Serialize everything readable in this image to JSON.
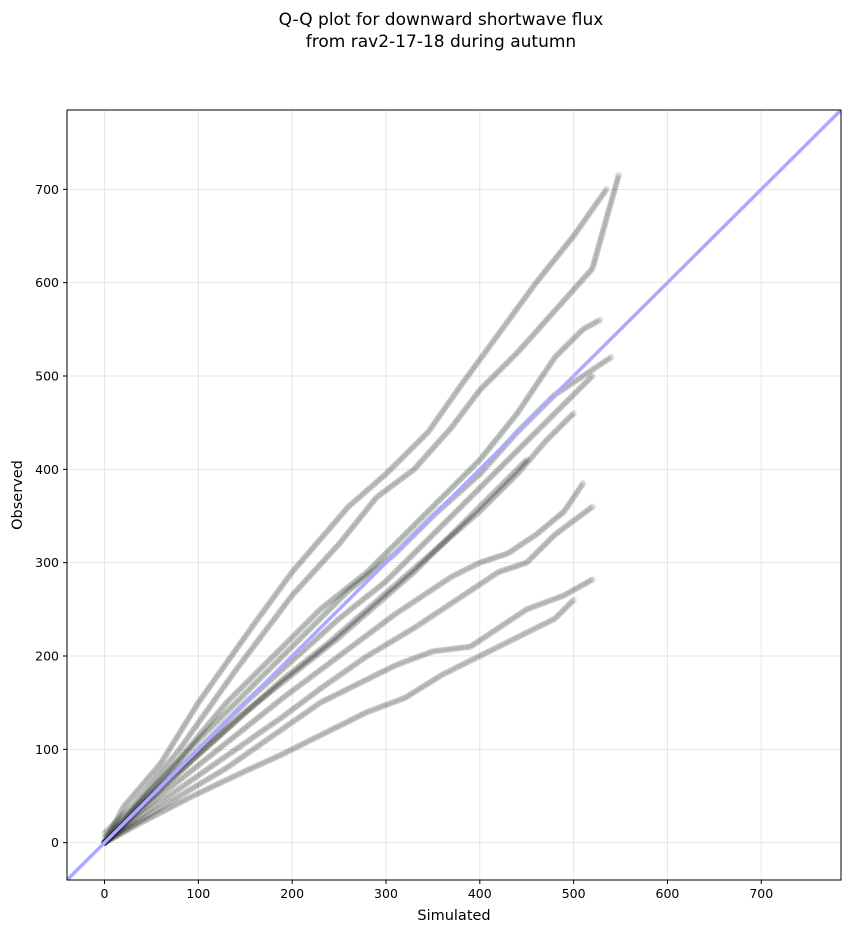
{
  "chart_data": {
    "type": "scatter",
    "title": [
      "Q-Q plot for downward shortwave flux",
      "from rav2-17-18 during autumn"
    ],
    "xlabel": "Simulated",
    "ylabel": "Observed",
    "xlim": [
      -40,
      785
    ],
    "ylim": [
      -40,
      785
    ],
    "xticks": [
      0,
      100,
      200,
      300,
      400,
      500,
      600,
      700
    ],
    "yticks": [
      0,
      100,
      200,
      300,
      400,
      500,
      600,
      700
    ],
    "grid": true,
    "reference_line": {
      "slope": 1,
      "intercept": 0,
      "color": "#aaaaff"
    },
    "point_color": "#000000",
    "point_alpha": 0.12,
    "series": [
      {
        "points": [
          [
            0,
            0
          ],
          [
            20,
            38
          ],
          [
            60,
            85
          ],
          [
            100,
            150
          ],
          [
            160,
            235
          ],
          [
            200,
            290
          ],
          [
            260,
            360
          ],
          [
            300,
            395
          ],
          [
            345,
            440
          ],
          [
            380,
            490
          ],
          [
            420,
            545
          ],
          [
            460,
            600
          ],
          [
            500,
            650
          ],
          [
            535,
            700
          ]
        ]
      },
      {
        "points": [
          [
            0,
            10
          ],
          [
            30,
            40
          ],
          [
            80,
            100
          ],
          [
            140,
            185
          ],
          [
            200,
            265
          ],
          [
            250,
            320
          ],
          [
            290,
            370
          ],
          [
            330,
            400
          ],
          [
            370,
            445
          ],
          [
            400,
            485
          ],
          [
            440,
            525
          ],
          [
            480,
            570
          ],
          [
            520,
            615
          ],
          [
            548,
            715
          ]
        ]
      },
      {
        "points": [
          [
            0,
            5
          ],
          [
            30,
            35
          ],
          [
            80,
            90
          ],
          [
            130,
            150
          ],
          [
            180,
            200
          ],
          [
            230,
            250
          ],
          [
            280,
            290
          ],
          [
            320,
            330
          ],
          [
            360,
            370
          ],
          [
            400,
            410
          ],
          [
            440,
            460
          ],
          [
            480,
            520
          ],
          [
            510,
            550
          ],
          [
            528,
            560
          ]
        ]
      },
      {
        "points": [
          [
            0,
            0
          ],
          [
            40,
            45
          ],
          [
            100,
            110
          ],
          [
            160,
            170
          ],
          [
            210,
            220
          ],
          [
            260,
            270
          ],
          [
            310,
            310
          ],
          [
            350,
            350
          ],
          [
            400,
            395
          ],
          [
            440,
            440
          ],
          [
            480,
            480
          ],
          [
            510,
            500
          ],
          [
            540,
            520
          ]
        ]
      },
      {
        "points": [
          [
            0,
            0
          ],
          [
            40,
            42
          ],
          [
            90,
            90
          ],
          [
            150,
            150
          ],
          [
            200,
            195
          ],
          [
            250,
            240
          ],
          [
            300,
            280
          ],
          [
            340,
            320
          ],
          [
            380,
            360
          ],
          [
            420,
            400
          ],
          [
            460,
            440
          ],
          [
            490,
            470
          ],
          [
            520,
            500
          ]
        ]
      },
      {
        "points": [
          [
            0,
            0
          ],
          [
            40,
            40
          ],
          [
            90,
            85
          ],
          [
            140,
            130
          ],
          [
            190,
            175
          ],
          [
            240,
            215
          ],
          [
            280,
            250
          ],
          [
            320,
            285
          ],
          [
            360,
            320
          ],
          [
            400,
            355
          ],
          [
            440,
            395
          ],
          [
            470,
            430
          ],
          [
            500,
            460
          ]
        ]
      },
      {
        "points": [
          [
            0,
            0
          ],
          [
            40,
            38
          ],
          [
            100,
            95
          ],
          [
            150,
            140
          ],
          [
            200,
            180
          ],
          [
            250,
            220
          ],
          [
            290,
            255
          ],
          [
            330,
            290
          ],
          [
            360,
            320
          ],
          [
            390,
            350
          ],
          [
            420,
            380
          ],
          [
            450,
            410
          ]
        ]
      },
      {
        "points": [
          [
            0,
            0
          ],
          [
            40,
            35
          ],
          [
            90,
            75
          ],
          [
            140,
            115
          ],
          [
            190,
            155
          ],
          [
            230,
            185
          ],
          [
            270,
            215
          ],
          [
            310,
            245
          ],
          [
            340,
            265
          ],
          [
            370,
            285
          ],
          [
            400,
            300
          ],
          [
            430,
            310
          ],
          [
            460,
            330
          ],
          [
            490,
            355
          ],
          [
            510,
            385
          ]
        ]
      },
      {
        "points": [
          [
            0,
            0
          ],
          [
            40,
            30
          ],
          [
            90,
            65
          ],
          [
            140,
            100
          ],
          [
            190,
            135
          ],
          [
            230,
            165
          ],
          [
            280,
            200
          ],
          [
            330,
            230
          ],
          [
            360,
            250
          ],
          [
            390,
            270
          ],
          [
            420,
            290
          ],
          [
            450,
            300
          ],
          [
            480,
            330
          ],
          [
            520,
            360
          ]
        ]
      },
      {
        "points": [
          [
            0,
            0
          ],
          [
            40,
            25
          ],
          [
            80,
            50
          ],
          [
            130,
            80
          ],
          [
            180,
            115
          ],
          [
            230,
            150
          ],
          [
            270,
            170
          ],
          [
            310,
            190
          ],
          [
            350,
            205
          ],
          [
            390,
            210
          ],
          [
            420,
            230
          ],
          [
            450,
            250
          ],
          [
            490,
            265
          ],
          [
            520,
            282
          ]
        ]
      },
      {
        "points": [
          [
            0,
            0
          ],
          [
            40,
            22
          ],
          [
            90,
            48
          ],
          [
            140,
            72
          ],
          [
            190,
            95
          ],
          [
            240,
            120
          ],
          [
            280,
            140
          ],
          [
            320,
            155
          ],
          [
            360,
            180
          ],
          [
            390,
            195
          ],
          [
            420,
            210
          ],
          [
            450,
            225
          ],
          [
            480,
            240
          ],
          [
            500,
            260
          ]
        ]
      }
    ]
  }
}
